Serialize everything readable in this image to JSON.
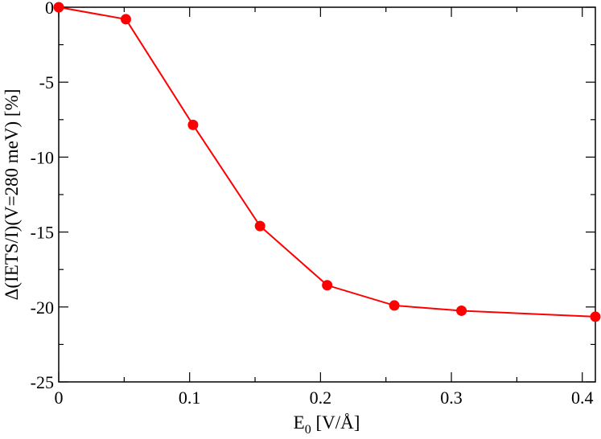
{
  "chart_data": {
    "type": "line",
    "title": "",
    "xlabel": {
      "main": "E",
      "sub": "0",
      "rest": " [V/Å]"
    },
    "ylabel": "Δ(IETS/I)(V=280 meV) [%]",
    "xlim": [
      0,
      0.41
    ],
    "ylim": [
      -25,
      0
    ],
    "x_ticks": [
      0,
      0.1,
      0.2,
      0.3,
      0.4
    ],
    "x_tick_labels": [
      "0",
      "0.1",
      "0.2",
      "0.3",
      "0.4"
    ],
    "y_ticks": [
      0,
      -5,
      -10,
      -15,
      -20,
      -25
    ],
    "y_tick_labels": [
      "0",
      "-5",
      "-10",
      "-15",
      "-20",
      "-25"
    ],
    "grid": false,
    "legend": "none",
    "series": [
      {
        "color": "#ff0000",
        "marker": "circle",
        "x": [
          0,
          0.0513,
          0.1026,
          0.1538,
          0.2051,
          0.2564,
          0.3077,
          0.41
        ],
        "y": [
          0,
          -0.8,
          -7.85,
          -14.6,
          -18.55,
          -19.9,
          -20.25,
          -20.65
        ]
      }
    ]
  }
}
